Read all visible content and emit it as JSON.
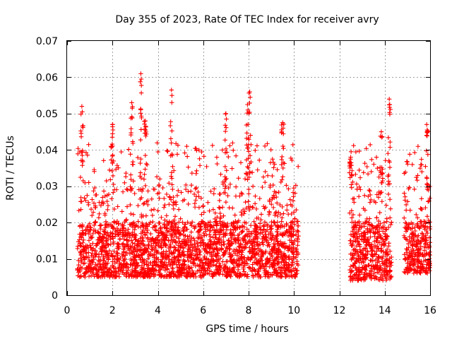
{
  "chart_data": {
    "type": "scatter",
    "title": "Day 355 of 2023, Rate Of TEC Index for receiver avry",
    "xlabel": "GPS time / hours",
    "ylabel": "ROTI / TECUs",
    "xlim": [
      0,
      16
    ],
    "ylim": [
      0,
      0.07
    ],
    "x_ticks": [
      "0",
      "2",
      "4",
      "6",
      "8",
      "10",
      "12",
      "14",
      "16"
    ],
    "y_ticks": [
      "0",
      "0.01",
      "0.02",
      "0.03",
      "0.04",
      "0.05",
      "0.06",
      "0.07"
    ],
    "grid": true,
    "marker": "+",
    "color": "#ff0000",
    "series": [
      {
        "name": "ROTI",
        "segments": [
          {
            "x_start": 0.45,
            "x_end": 10.2,
            "typical_low": 0.005,
            "typical_high": 0.03
          },
          {
            "x_start": 12.45,
            "x_end": 14.3,
            "typical_low": 0.004,
            "typical_high": 0.03
          },
          {
            "x_start": 14.85,
            "x_end": 16.0,
            "typical_low": 0.006,
            "typical_high": 0.03
          }
        ],
        "peaks": [
          {
            "x": 0.65,
            "y": 0.052
          },
          {
            "x": 2.0,
            "y": 0.047
          },
          {
            "x": 2.85,
            "y": 0.053
          },
          {
            "x": 3.25,
            "y": 0.061
          },
          {
            "x": 3.45,
            "y": 0.048
          },
          {
            "x": 4.6,
            "y": 0.0565
          },
          {
            "x": 7.0,
            "y": 0.05
          },
          {
            "x": 7.95,
            "y": 0.0525
          },
          {
            "x": 8.05,
            "y": 0.056
          },
          {
            "x": 9.5,
            "y": 0.0475
          },
          {
            "x": 12.5,
            "y": 0.038
          },
          {
            "x": 13.85,
            "y": 0.045
          },
          {
            "x": 14.2,
            "y": 0.054
          },
          {
            "x": 15.85,
            "y": 0.047
          }
        ]
      }
    ]
  }
}
